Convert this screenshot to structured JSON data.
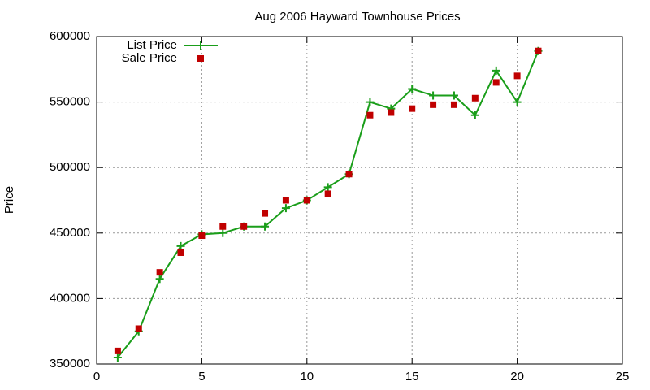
{
  "chart_data": {
    "type": "line",
    "title": "Aug 2006 Hayward Townhouse Prices",
    "y_label": "Price",
    "x": [
      1,
      2,
      3,
      4,
      5,
      6,
      7,
      8,
      9,
      10,
      11,
      12,
      13,
      14,
      15,
      16,
      17,
      18,
      19,
      20,
      21
    ],
    "series": [
      {
        "name": "List Price",
        "color": "#1a9e1a",
        "line": true,
        "marker": "plus",
        "values": [
          355000,
          375000,
          415000,
          440000,
          449000,
          450000,
          455000,
          455000,
          469000,
          475000,
          485000,
          495000,
          550000,
          545000,
          560000,
          555000,
          555000,
          540000,
          574000,
          550000,
          589000
        ]
      },
      {
        "name": "Sale Price",
        "color": "#c00000",
        "line": false,
        "marker": "square",
        "values": [
          360000,
          377000,
          420000,
          435000,
          448000,
          455000,
          455000,
          465000,
          475000,
          475000,
          480000,
          495000,
          540000,
          542000,
          545000,
          548000,
          548000,
          553000,
          565000,
          570000,
          589000
        ]
      }
    ],
    "xlim": [
      0,
      25
    ],
    "xticks": [
      0,
      5,
      10,
      15,
      20,
      25
    ],
    "ylim": [
      350000,
      600000
    ],
    "yticks": [
      350000,
      400000,
      450000,
      500000,
      550000,
      600000
    ],
    "grid": true,
    "legend": "top-left"
  }
}
